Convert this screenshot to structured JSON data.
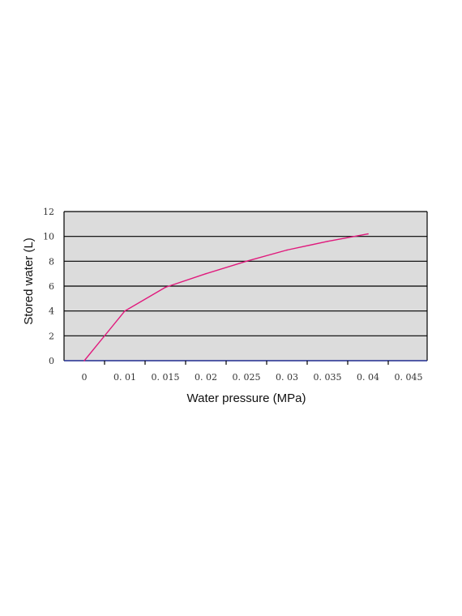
{
  "chart_data": {
    "type": "line",
    "title": "",
    "xlabel": "Water pressure (MPa)",
    "ylabel": "Stored water (L)",
    "xlim": [
      0,
      0.045
    ],
    "ylim": [
      0,
      12
    ],
    "grid": true,
    "legend": "none",
    "x_tick_values": [
      0,
      0.01,
      0.015,
      0.02,
      0.025,
      0.03,
      0.035,
      0.04,
      0.045
    ],
    "x_tick_labels": [
      "0",
      "0. 01",
      "0. 015",
      "0. 02",
      "0. 025",
      "0. 03",
      "0. 035",
      "0. 04",
      "0. 045"
    ],
    "y_ticks": [
      0,
      2,
      4,
      6,
      8,
      10,
      12
    ],
    "y_tick_labels": [
      "0",
      "2",
      "4",
      "6",
      "8",
      "10",
      "12"
    ],
    "series": [
      {
        "color": "#e0197c",
        "points": [
          [
            0,
            0
          ],
          [
            0.01,
            4.0
          ],
          [
            0.015,
            5.9
          ],
          [
            0.02,
            7.0
          ],
          [
            0.025,
            8.0
          ],
          [
            0.03,
            8.9
          ],
          [
            0.035,
            9.6
          ],
          [
            0.04,
            10.2
          ]
        ]
      }
    ],
    "colors": {
      "plot_background": "#dcdcdc",
      "grid": "#000000",
      "x_axis_line": "#1f2c8f"
    }
  }
}
